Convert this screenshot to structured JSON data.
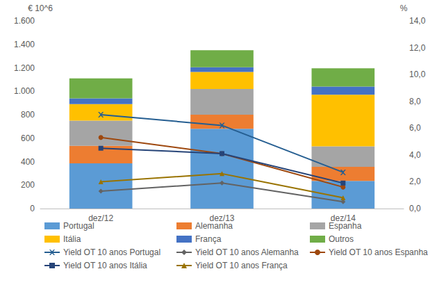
{
  "chart_data": {
    "type": "bar",
    "stacked": true,
    "grid": false,
    "legend": "bottom",
    "ylabel": "€ 10^6",
    "y2label": "%",
    "categories": [
      "dez/12",
      "dez/13",
      "dez/14"
    ],
    "ylim": [
      0,
      1600
    ],
    "yticks": [
      0,
      200,
      400,
      600,
      800,
      {
        "value": 1000,
        "label": "1.000"
      },
      {
        "value": 1200,
        "label": "1.200"
      },
      {
        "value": 1400,
        "label": "1.400"
      },
      {
        "value": 1600,
        "label": "1.600"
      }
    ],
    "y2lim": [
      0,
      14
    ],
    "y2ticks": [
      {
        "value": 0,
        "label": "0,0"
      },
      {
        "value": 2,
        "label": "2,0"
      },
      {
        "value": 4,
        "label": "4,0"
      },
      {
        "value": 6,
        "label": "6,0"
      },
      {
        "value": 8,
        "label": "8,0"
      },
      {
        "value": 10,
        "label": "10,0"
      },
      {
        "value": 12,
        "label": "12,0"
      },
      {
        "value": 14,
        "label": "14,0"
      }
    ],
    "series": [
      {
        "name": "Portugal",
        "type": "bar",
        "color": "#5b9bd5",
        "values": [
          385,
          680,
          235
        ]
      },
      {
        "name": "Alemanha",
        "type": "bar",
        "color": "#ed7d31",
        "values": [
          150,
          120,
          120
        ]
      },
      {
        "name": "Espanha",
        "type": "bar",
        "color": "#a5a5a5",
        "values": [
          215,
          220,
          175
        ]
      },
      {
        "name": "Itália",
        "type": "bar",
        "color": "#ffc000",
        "values": [
          140,
          145,
          440
        ]
      },
      {
        "name": "França",
        "type": "bar",
        "color": "#4472c4",
        "values": [
          50,
          40,
          70
        ]
      },
      {
        "name": "Outros",
        "type": "bar",
        "color": "#70ad47",
        "values": [
          170,
          145,
          155
        ]
      },
      {
        "name": "Yield OT 10 anos Portugal",
        "type": "line",
        "axis": "y2",
        "color": "#255e91",
        "marker": "x",
        "line_style": "solid",
        "values": [
          7.0,
          6.2,
          2.7
        ]
      },
      {
        "name": "Yield OT 10 anos Alemanha",
        "type": "line",
        "axis": "y2",
        "color": "#636363",
        "marker": "diamond",
        "line_style": "solid",
        "values": [
          1.3,
          1.9,
          0.5
        ]
      },
      {
        "name": "Yield OT 10 anos Espanha",
        "type": "line",
        "axis": "y2",
        "color": "#9e480e",
        "marker": "circle",
        "line_style": "solid",
        "values": [
          5.3,
          4.1,
          1.6
        ]
      },
      {
        "name": "Yield OT 10 anos Itália",
        "type": "line",
        "axis": "y2",
        "color": "#264478",
        "marker": "square",
        "line_style": "solid",
        "values": [
          4.5,
          4.1,
          1.9
        ]
      },
      {
        "name": "Yield OT 10 anos França",
        "type": "line",
        "axis": "y2",
        "color": "#997300",
        "marker": "triangle",
        "line_style": "solid",
        "values": [
          2.0,
          2.6,
          0.8
        ]
      }
    ]
  }
}
